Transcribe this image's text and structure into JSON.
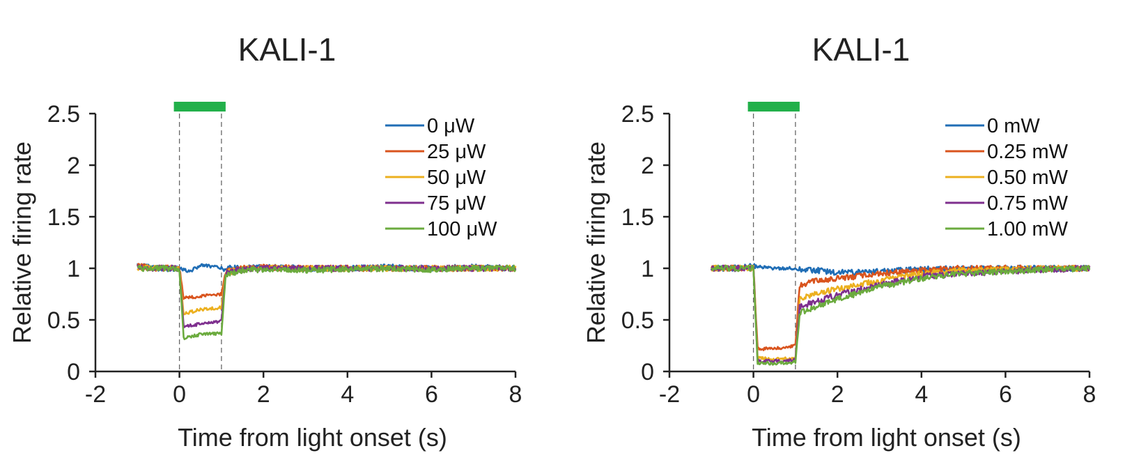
{
  "colors": {
    "series": [
      "#1f6db5",
      "#d9541e",
      "#ecb01f",
      "#7e2f8e",
      "#6bab3e"
    ],
    "stimulus_bar": "#22b04a",
    "axis": "#222222",
    "dashed": "#666666"
  },
  "chart_data": [
    {
      "type": "line",
      "title": "KALI-1",
      "xlabel": "Time from light onset (s)",
      "ylabel": "Relative firing rate",
      "xlim": [
        -2,
        8
      ],
      "ylim": [
        0,
        2.5
      ],
      "xticks": [
        "-2",
        "0",
        "2",
        "4",
        "6",
        "8"
      ],
      "yticks": [
        "0",
        "0.5",
        "1",
        "1.5",
        "2",
        "2.5"
      ],
      "stimulus": {
        "start": 0,
        "end": 1
      },
      "legend_position": "top-right",
      "series": [
        {
          "name": "0 μW",
          "level_during": 1.0,
          "recovery_tau": 0,
          "points": [
            [
              -1,
              1.02
            ],
            [
              -0.5,
              1.0
            ],
            [
              0,
              1.0
            ],
            [
              0.25,
              0.97
            ],
            [
              0.5,
              1.03
            ],
            [
              0.75,
              1.02
            ],
            [
              1,
              1.0
            ],
            [
              1.5,
              1.0
            ],
            [
              2,
              1.01
            ],
            [
              3,
              1.0
            ],
            [
              4,
              1.0
            ],
            [
              5,
              1.01
            ],
            [
              6,
              1.0
            ],
            [
              7,
              1.01
            ],
            [
              8,
              1.0
            ]
          ]
        },
        {
          "name": "25 μW",
          "level_during": 0.72,
          "recovery_tau": 0.2,
          "points": [
            [
              -1,
              1.02
            ],
            [
              -0.5,
              1.0
            ],
            [
              0,
              1.0
            ],
            [
              0.1,
              0.71
            ],
            [
              0.5,
              0.73
            ],
            [
              1,
              0.75
            ],
            [
              1.1,
              0.97
            ],
            [
              1.5,
              1.0
            ],
            [
              2,
              1.01
            ],
            [
              3,
              1.0
            ],
            [
              4,
              1.0
            ],
            [
              5,
              1.0
            ],
            [
              6,
              1.0
            ],
            [
              7,
              1.0
            ],
            [
              8,
              1.0
            ]
          ]
        },
        {
          "name": "50 μW",
          "level_during": 0.59,
          "recovery_tau": 0.25,
          "points": [
            [
              -1,
              1.01
            ],
            [
              -0.5,
              1.0
            ],
            [
              0,
              1.0
            ],
            [
              0.1,
              0.56
            ],
            [
              0.5,
              0.6
            ],
            [
              1,
              0.62
            ],
            [
              1.1,
              0.96
            ],
            [
              1.5,
              0.99
            ],
            [
              2,
              1.0
            ],
            [
              3,
              1.0
            ],
            [
              4,
              1.0
            ],
            [
              5,
              1.0
            ],
            [
              6,
              1.0
            ],
            [
              7,
              1.0
            ],
            [
              8,
              1.0
            ]
          ]
        },
        {
          "name": "75 μW",
          "level_during": 0.46,
          "recovery_tau": 0.3,
          "points": [
            [
              -1,
              1.01
            ],
            [
              -0.5,
              1.0
            ],
            [
              0,
              1.0
            ],
            [
              0.1,
              0.44
            ],
            [
              0.5,
              0.46
            ],
            [
              1,
              0.49
            ],
            [
              1.1,
              0.95
            ],
            [
              1.5,
              0.99
            ],
            [
              2,
              1.0
            ],
            [
              3,
              1.0
            ],
            [
              4,
              1.0
            ],
            [
              5,
              1.0
            ],
            [
              6,
              1.0
            ],
            [
              7,
              1.0
            ],
            [
              8,
              1.0
            ]
          ]
        },
        {
          "name": "100 μW",
          "level_during": 0.35,
          "recovery_tau": 0.35,
          "points": [
            [
              -1,
              1.0
            ],
            [
              -0.5,
              1.0
            ],
            [
              0,
              1.0
            ],
            [
              0.1,
              0.32
            ],
            [
              0.5,
              0.36
            ],
            [
              1,
              0.37
            ],
            [
              1.1,
              0.93
            ],
            [
              1.5,
              0.98
            ],
            [
              2,
              0.99
            ],
            [
              3,
              0.98
            ],
            [
              4,
              0.99
            ],
            [
              5,
              1.0
            ],
            [
              6,
              0.99
            ],
            [
              7,
              1.0
            ],
            [
              8,
              1.0
            ]
          ]
        }
      ]
    },
    {
      "type": "line",
      "title": "KALI-1",
      "xlabel": "Time from light onset (s)",
      "ylabel": "Relative firing rate",
      "xlim": [
        -2,
        8
      ],
      "ylim": [
        0,
        2.5
      ],
      "xticks": [
        "-2",
        "0",
        "2",
        "4",
        "6",
        "8"
      ],
      "yticks": [
        "0",
        "0.5",
        "1",
        "1.5",
        "2",
        "2.5"
      ],
      "stimulus": {
        "start": 0,
        "end": 1
      },
      "legend_position": "top-right",
      "series": [
        {
          "name": "0 mW",
          "level_during": 1.0,
          "recovery_tau": 0,
          "points": [
            [
              -1,
              1.0
            ],
            [
              -0.5,
              1.0
            ],
            [
              0,
              1.02
            ],
            [
              0.5,
              1.0
            ],
            [
              1,
              1.0
            ],
            [
              1.5,
              0.98
            ],
            [
              2,
              0.96
            ],
            [
              2.5,
              0.96
            ],
            [
              3,
              0.97
            ],
            [
              4,
              0.99
            ],
            [
              5,
              1.0
            ],
            [
              6,
              1.0
            ],
            [
              7,
              1.0
            ],
            [
              8,
              1.0
            ]
          ]
        },
        {
          "name": "0.25 mW",
          "level_during": 0.22,
          "recovery_tau": 0.9,
          "points": [
            [
              -1,
              1.0
            ],
            [
              -0.5,
              1.0
            ],
            [
              0,
              1.0
            ],
            [
              0.1,
              0.22
            ],
            [
              0.5,
              0.22
            ],
            [
              1,
              0.25
            ],
            [
              1.1,
              0.84
            ],
            [
              1.5,
              0.88
            ],
            [
              2,
              0.9
            ],
            [
              3,
              0.95
            ],
            [
              4,
              0.98
            ],
            [
              5,
              1.0
            ],
            [
              6,
              1.0
            ],
            [
              7,
              1.0
            ],
            [
              8,
              1.0
            ]
          ]
        },
        {
          "name": "0.50 mW",
          "level_during": 0.12,
          "recovery_tau": 1.6,
          "points": [
            [
              -1,
              1.0
            ],
            [
              -0.5,
              1.0
            ],
            [
              0,
              1.0
            ],
            [
              0.1,
              0.13
            ],
            [
              0.5,
              0.12
            ],
            [
              1,
              0.13
            ],
            [
              1.1,
              0.7
            ],
            [
              1.5,
              0.75
            ],
            [
              2,
              0.8
            ],
            [
              3,
              0.88
            ],
            [
              4,
              0.95
            ],
            [
              5,
              0.98
            ],
            [
              6,
              0.99
            ],
            [
              7,
              1.0
            ],
            [
              8,
              1.0
            ]
          ]
        },
        {
          "name": "0.75 mW",
          "level_during": 0.1,
          "recovery_tau": 1.9,
          "points": [
            [
              -1,
              1.0
            ],
            [
              -0.5,
              1.0
            ],
            [
              0,
              1.0
            ],
            [
              0.1,
              0.1
            ],
            [
              0.5,
              0.1
            ],
            [
              1,
              0.11
            ],
            [
              1.1,
              0.63
            ],
            [
              1.5,
              0.68
            ],
            [
              2,
              0.74
            ],
            [
              3,
              0.84
            ],
            [
              4,
              0.92
            ],
            [
              5,
              0.95
            ],
            [
              6,
              0.97
            ],
            [
              7,
              0.99
            ],
            [
              8,
              1.0
            ]
          ]
        },
        {
          "name": "1.00 mW",
          "level_during": 0.08,
          "recovery_tau": 2.2,
          "points": [
            [
              -1,
              1.0
            ],
            [
              -0.5,
              1.0
            ],
            [
              0,
              1.0
            ],
            [
              0.1,
              0.08
            ],
            [
              0.5,
              0.08
            ],
            [
              1,
              0.09
            ],
            [
              1.1,
              0.57
            ],
            [
              1.5,
              0.63
            ],
            [
              2,
              0.7
            ],
            [
              3,
              0.82
            ],
            [
              4,
              0.9
            ],
            [
              5,
              0.95
            ],
            [
              6,
              0.97
            ],
            [
              7,
              0.99
            ],
            [
              8,
              1.0
            ]
          ]
        }
      ]
    }
  ]
}
